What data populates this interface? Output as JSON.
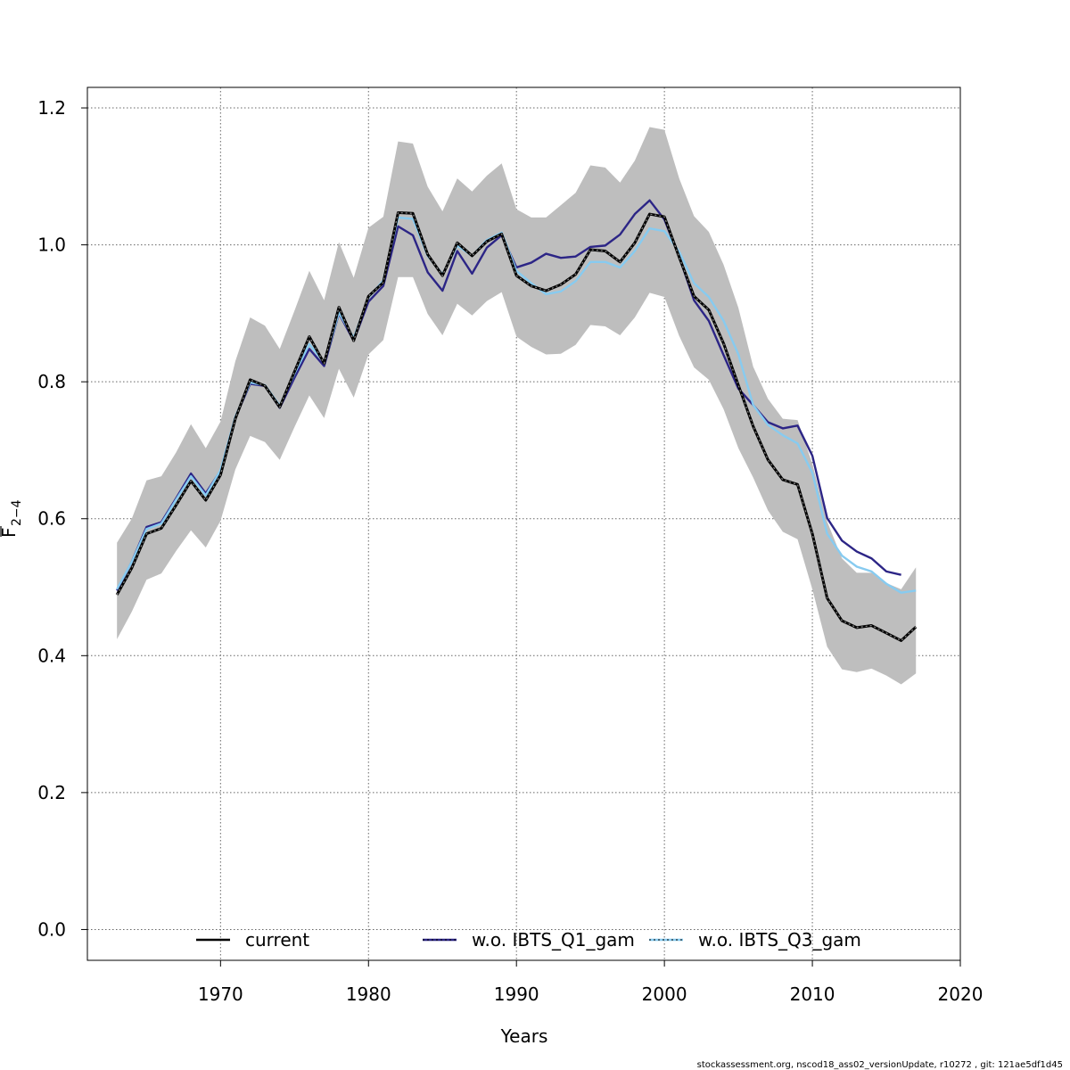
{
  "chart_data": {
    "type": "line",
    "xlabel": "Years",
    "ylabel": "F",
    "ylabel_sub": "2−4",
    "xlim": [
      1961,
      2020
    ],
    "ylim": [
      -0.045,
      1.23
    ],
    "xticks": [
      1970,
      1980,
      1990,
      2000,
      2010,
      2020
    ],
    "yticks": [
      0.0,
      0.2,
      0.4,
      0.6,
      0.8,
      1.0,
      1.2
    ],
    "xtick_labels": [
      "1970",
      "1980",
      "1990",
      "2000",
      "2010",
      "2020"
    ],
    "ytick_labels": [
      "0.0",
      "0.2",
      "0.4",
      "0.6",
      "0.8",
      "1.0",
      "1.2"
    ],
    "grid": true,
    "legend_position": "bottom",
    "confidence_band": {
      "color": "#bebebe",
      "x": [
        1963,
        1964,
        1965,
        1966,
        1967,
        1968,
        1969,
        1970,
        1971,
        1972,
        1973,
        1974,
        1975,
        1976,
        1977,
        1978,
        1979,
        1980,
        1981,
        1982,
        1983,
        1984,
        1985,
        1986,
        1987,
        1988,
        1989,
        1990,
        1991,
        1992,
        1993,
        1994,
        1995,
        1996,
        1997,
        1998,
        1999,
        2000,
        2001,
        2002,
        2003,
        2004,
        2005,
        2006,
        2007,
        2008,
        2009,
        2010,
        2011,
        2012,
        2013,
        2014,
        2015,
        2016,
        2017
      ],
      "upper": [
        0.565,
        0.6,
        0.656,
        0.662,
        0.697,
        0.738,
        0.703,
        0.742,
        0.83,
        0.894,
        0.882,
        0.848,
        0.904,
        0.962,
        0.919,
        1.004,
        0.952,
        1.025,
        1.041,
        1.151,
        1.148,
        1.085,
        1.049,
        1.097,
        1.078,
        1.101,
        1.119,
        1.052,
        1.04,
        1.04,
        1.058,
        1.076,
        1.116,
        1.113,
        1.091,
        1.123,
        1.172,
        1.168,
        1.097,
        1.042,
        1.019,
        0.971,
        0.908,
        0.822,
        0.775,
        0.746,
        0.744,
        0.68,
        0.596,
        0.542,
        0.521,
        0.521,
        0.506,
        0.497,
        0.529
      ],
      "lower": [
        0.424,
        0.464,
        0.511,
        0.52,
        0.553,
        0.583,
        0.558,
        0.597,
        0.672,
        0.721,
        0.712,
        0.686,
        0.734,
        0.78,
        0.747,
        0.819,
        0.777,
        0.84,
        0.861,
        0.953,
        0.953,
        0.899,
        0.868,
        0.914,
        0.897,
        0.918,
        0.931,
        0.866,
        0.851,
        0.84,
        0.841,
        0.854,
        0.883,
        0.881,
        0.868,
        0.894,
        0.93,
        0.924,
        0.867,
        0.821,
        0.803,
        0.76,
        0.703,
        0.66,
        0.612,
        0.581,
        0.57,
        0.497,
        0.413,
        0.38,
        0.376,
        0.381,
        0.371,
        0.358,
        0.374
      ]
    },
    "series": [
      {
        "name": "current",
        "color": "#000000",
        "style": "solid",
        "x": [
          1963,
          1964,
          1965,
          1966,
          1967,
          1968,
          1969,
          1970,
          1971,
          1972,
          1973,
          1974,
          1975,
          1976,
          1977,
          1978,
          1979,
          1980,
          1981,
          1982,
          1983,
          1984,
          1985,
          1986,
          1987,
          1988,
          1989,
          1990,
          1991,
          1992,
          1993,
          1994,
          1995,
          1996,
          1997,
          1998,
          1999,
          2000,
          2001,
          2002,
          2003,
          2004,
          2005,
          2006,
          2007,
          2008,
          2009,
          2010,
          2011,
          2012,
          2013,
          2014,
          2015,
          2016,
          2017
        ],
        "values": [
          0.489,
          0.528,
          0.578,
          0.586,
          0.62,
          0.655,
          0.627,
          0.664,
          0.746,
          0.803,
          0.794,
          0.763,
          0.815,
          0.866,
          0.827,
          0.909,
          0.86,
          0.925,
          0.945,
          1.047,
          1.046,
          0.986,
          0.955,
          1.003,
          0.984,
          1.005,
          1.016,
          0.955,
          0.94,
          0.933,
          0.942,
          0.957,
          0.993,
          0.991,
          0.975,
          1.003,
          1.045,
          1.041,
          0.982,
          0.925,
          0.905,
          0.856,
          0.795,
          0.735,
          0.686,
          0.657,
          0.65,
          0.578,
          0.484,
          0.451,
          0.441,
          0.444,
          0.433,
          0.422,
          0.442
        ]
      },
      {
        "name": "w.o. IBTS_Q1_gam",
        "color": "#2c2586",
        "style": "solid",
        "x": [
          1963,
          1964,
          1965,
          1966,
          1967,
          1968,
          1969,
          1970,
          1971,
          1972,
          1973,
          1974,
          1975,
          1976,
          1977,
          1978,
          1979,
          1980,
          1981,
          1982,
          1983,
          1984,
          1985,
          1986,
          1987,
          1988,
          1989,
          1990,
          1991,
          1992,
          1993,
          1994,
          1995,
          1996,
          1997,
          1998,
          1999,
          2000,
          2001,
          2002,
          2003,
          2004,
          2005,
          2006,
          2007,
          2008,
          2009,
          2010,
          2011,
          2012,
          2013,
          2014,
          2015,
          2016
        ],
        "values": [
          0.495,
          0.537,
          0.588,
          0.595,
          0.63,
          0.666,
          0.637,
          0.67,
          0.748,
          0.797,
          0.794,
          0.762,
          0.806,
          0.848,
          0.823,
          0.9,
          0.86,
          0.917,
          0.94,
          1.027,
          1.014,
          0.96,
          0.933,
          0.991,
          0.958,
          0.996,
          1.014,
          0.967,
          0.974,
          0.987,
          0.981,
          0.983,
          0.997,
          0.999,
          1.015,
          1.045,
          1.065,
          1.037,
          0.983,
          0.919,
          0.889,
          0.839,
          0.79,
          0.766,
          0.741,
          0.732,
          0.736,
          0.692,
          0.601,
          0.568,
          0.552,
          0.542,
          0.523,
          0.518
        ]
      },
      {
        "name": "w.o. IBTS_Q3_gam",
        "color": "#87cbf0",
        "style": "dotted",
        "x": [
          1963,
          1964,
          1965,
          1966,
          1967,
          1968,
          1969,
          1970,
          1971,
          1972,
          1973,
          1974,
          1975,
          1976,
          1977,
          1978,
          1979,
          1980,
          1981,
          1982,
          1983,
          1984,
          1985,
          1986,
          1987,
          1988,
          1989,
          1990,
          1991,
          1992,
          1993,
          1994,
          1995,
          1996,
          1997,
          1998,
          1999,
          2000,
          2001,
          2002,
          2003,
          2004,
          2005,
          2006,
          2007,
          2008,
          2009,
          2010,
          2011,
          2012,
          2013,
          2014,
          2015,
          2016,
          2017
        ],
        "values": [
          0.497,
          0.537,
          0.585,
          0.593,
          0.628,
          0.662,
          0.634,
          0.671,
          0.749,
          0.799,
          0.795,
          0.765,
          0.812,
          0.855,
          0.828,
          0.901,
          0.864,
          0.923,
          0.948,
          1.04,
          1.038,
          0.984,
          0.957,
          0.999,
          0.984,
          1.007,
          1.018,
          0.962,
          0.944,
          0.928,
          0.932,
          0.947,
          0.975,
          0.975,
          0.967,
          0.991,
          1.024,
          1.02,
          0.99,
          0.944,
          0.924,
          0.889,
          0.84,
          0.766,
          0.737,
          0.722,
          0.71,
          0.667,
          0.578,
          0.546,
          0.53,
          0.523,
          0.505,
          0.492,
          0.495
        ]
      }
    ]
  },
  "legend": {
    "items": [
      {
        "label": "current",
        "color": "#000000"
      },
      {
        "label": "w.o. IBTS_Q1_gam",
        "color": "#2c2586"
      },
      {
        "label": "w.o. IBTS_Q3_gam",
        "color": "#87cbf0"
      }
    ]
  },
  "footer": {
    "text": "stockassessment.org, nscod18_ass02_versionUpdate, r10272 , git: 121ae5df1d45"
  }
}
